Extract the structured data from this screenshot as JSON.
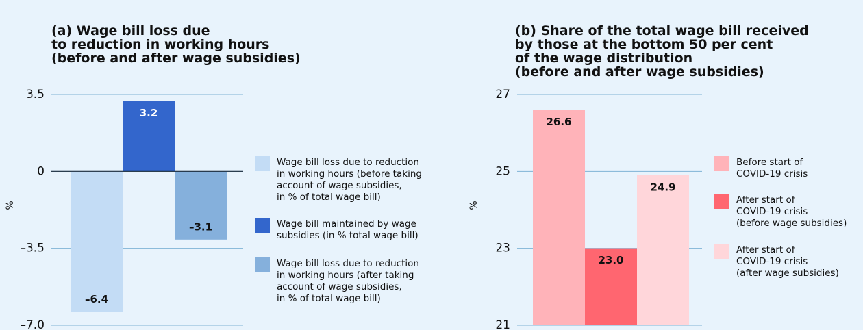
{
  "chart_data": [
    {
      "type": "bar",
      "title": "(a) Wage bill loss due\nto reduction in working hours\n(before and after wage subsidies)",
      "y_label": "%",
      "ylim": [
        -7,
        3.5
      ],
      "yticks": [
        3.5,
        0,
        {
          "value": -3.5,
          "label": "–3.5"
        },
        {
          "value": -7,
          "label": "–7.0"
        }
      ],
      "grid": true,
      "series": [
        {
          "name": "Wage bill loss due to reduction\nin working hours (before taking\naccount of wage subsidies,\nin % of total wage bill)",
          "color": "#c3dcf5",
          "values": [
            -6.4
          ],
          "value_labels": [
            "–6.4"
          ]
        },
        {
          "name": "Wage bill maintained by wage\nsubsidies (in % total wage bill)",
          "color": "#3366cc",
          "values": [
            3.2
          ],
          "value_labels": [
            "3.2"
          ]
        },
        {
          "name": "Wage bill loss due to reduction\nin working hours (after taking\naccount of wage subsidies,\nin % of total wage bill)",
          "color": "#85b0dc",
          "values": [
            -3.1
          ],
          "value_labels": [
            "–3.1"
          ]
        }
      ]
    },
    {
      "type": "bar",
      "title": "(b) Share of the total wage bill received\nby those at the bottom 50 per cent\nof the wage distribution\n(before and after wage subsidies)",
      "y_label": "%",
      "ylim": [
        21,
        27
      ],
      "yticks": [
        21,
        23,
        25,
        27
      ],
      "grid": true,
      "series": [
        {
          "name": "Before start of\nCOVID-19 crisis",
          "color": "#ffb3b9",
          "values": [
            26.6
          ]
        },
        {
          "name": "After start of\nCOVID-19 crisis\n(before wage subsidies)",
          "color": "#ff6670",
          "values": [
            23.0
          ],
          "value_labels": [
            "23.0"
          ]
        },
        {
          "name": "After start of\nCOVID-19 crisis\n(after wage subsidies)",
          "color": "#ffd6da",
          "values": [
            24.9
          ]
        }
      ]
    }
  ]
}
